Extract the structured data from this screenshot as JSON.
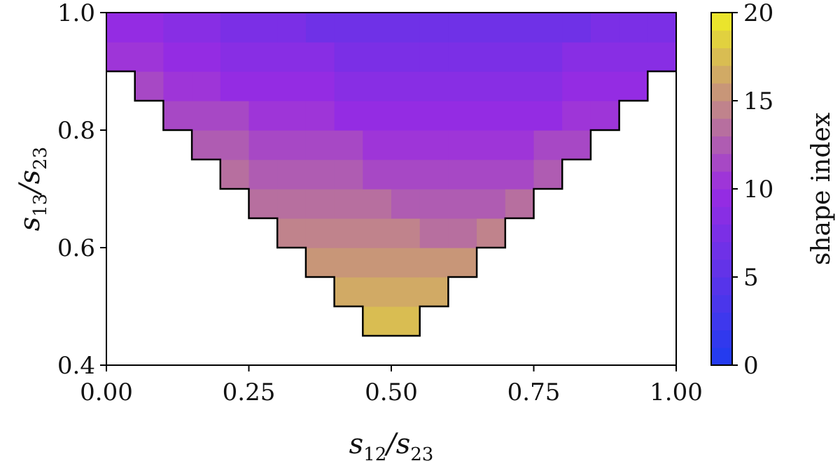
{
  "chart_data": {
    "type": "heatmap",
    "x_label": {
      "var": "s",
      "sub": "12",
      "sep": "/",
      "var2": "s",
      "sub2": "23"
    },
    "y_label": {
      "var": "s",
      "sub": "13",
      "sep": "/",
      "var2": "s",
      "sub2": "23"
    },
    "xlim": [
      0,
      1
    ],
    "ylim": [
      0.4,
      1
    ],
    "x_ticks": [
      "0.00",
      "0.25",
      "0.50",
      "0.75",
      "1.00"
    ],
    "x_tick_values": [
      0,
      0.25,
      0.5,
      0.75,
      1
    ],
    "y_ticks": [
      "0.4",
      "0.6",
      "0.8",
      "1.0"
    ],
    "y_tick_values": [
      0.4,
      0.6,
      0.8,
      1.0
    ],
    "grid": false,
    "cell_size": 0.05,
    "domain_rule": "cells present where s13/s23 >= max(1 - s12/s23, s12/s23) - 0.05",
    "value_model": "shape index decreases from ~19 at the lower-left edge to ~0 at the top-right corner",
    "colorbar": {
      "label": "shape index",
      "min": 0,
      "max": 20,
      "ticks": [
        "0",
        "5",
        "10",
        "15",
        "20"
      ],
      "tick_values": [
        0,
        5,
        10,
        15,
        20
      ],
      "levels": 20,
      "colors": {
        "low": "#1f3cf0",
        "mid": "#9a2be2",
        "high": "#eeee22"
      }
    }
  }
}
